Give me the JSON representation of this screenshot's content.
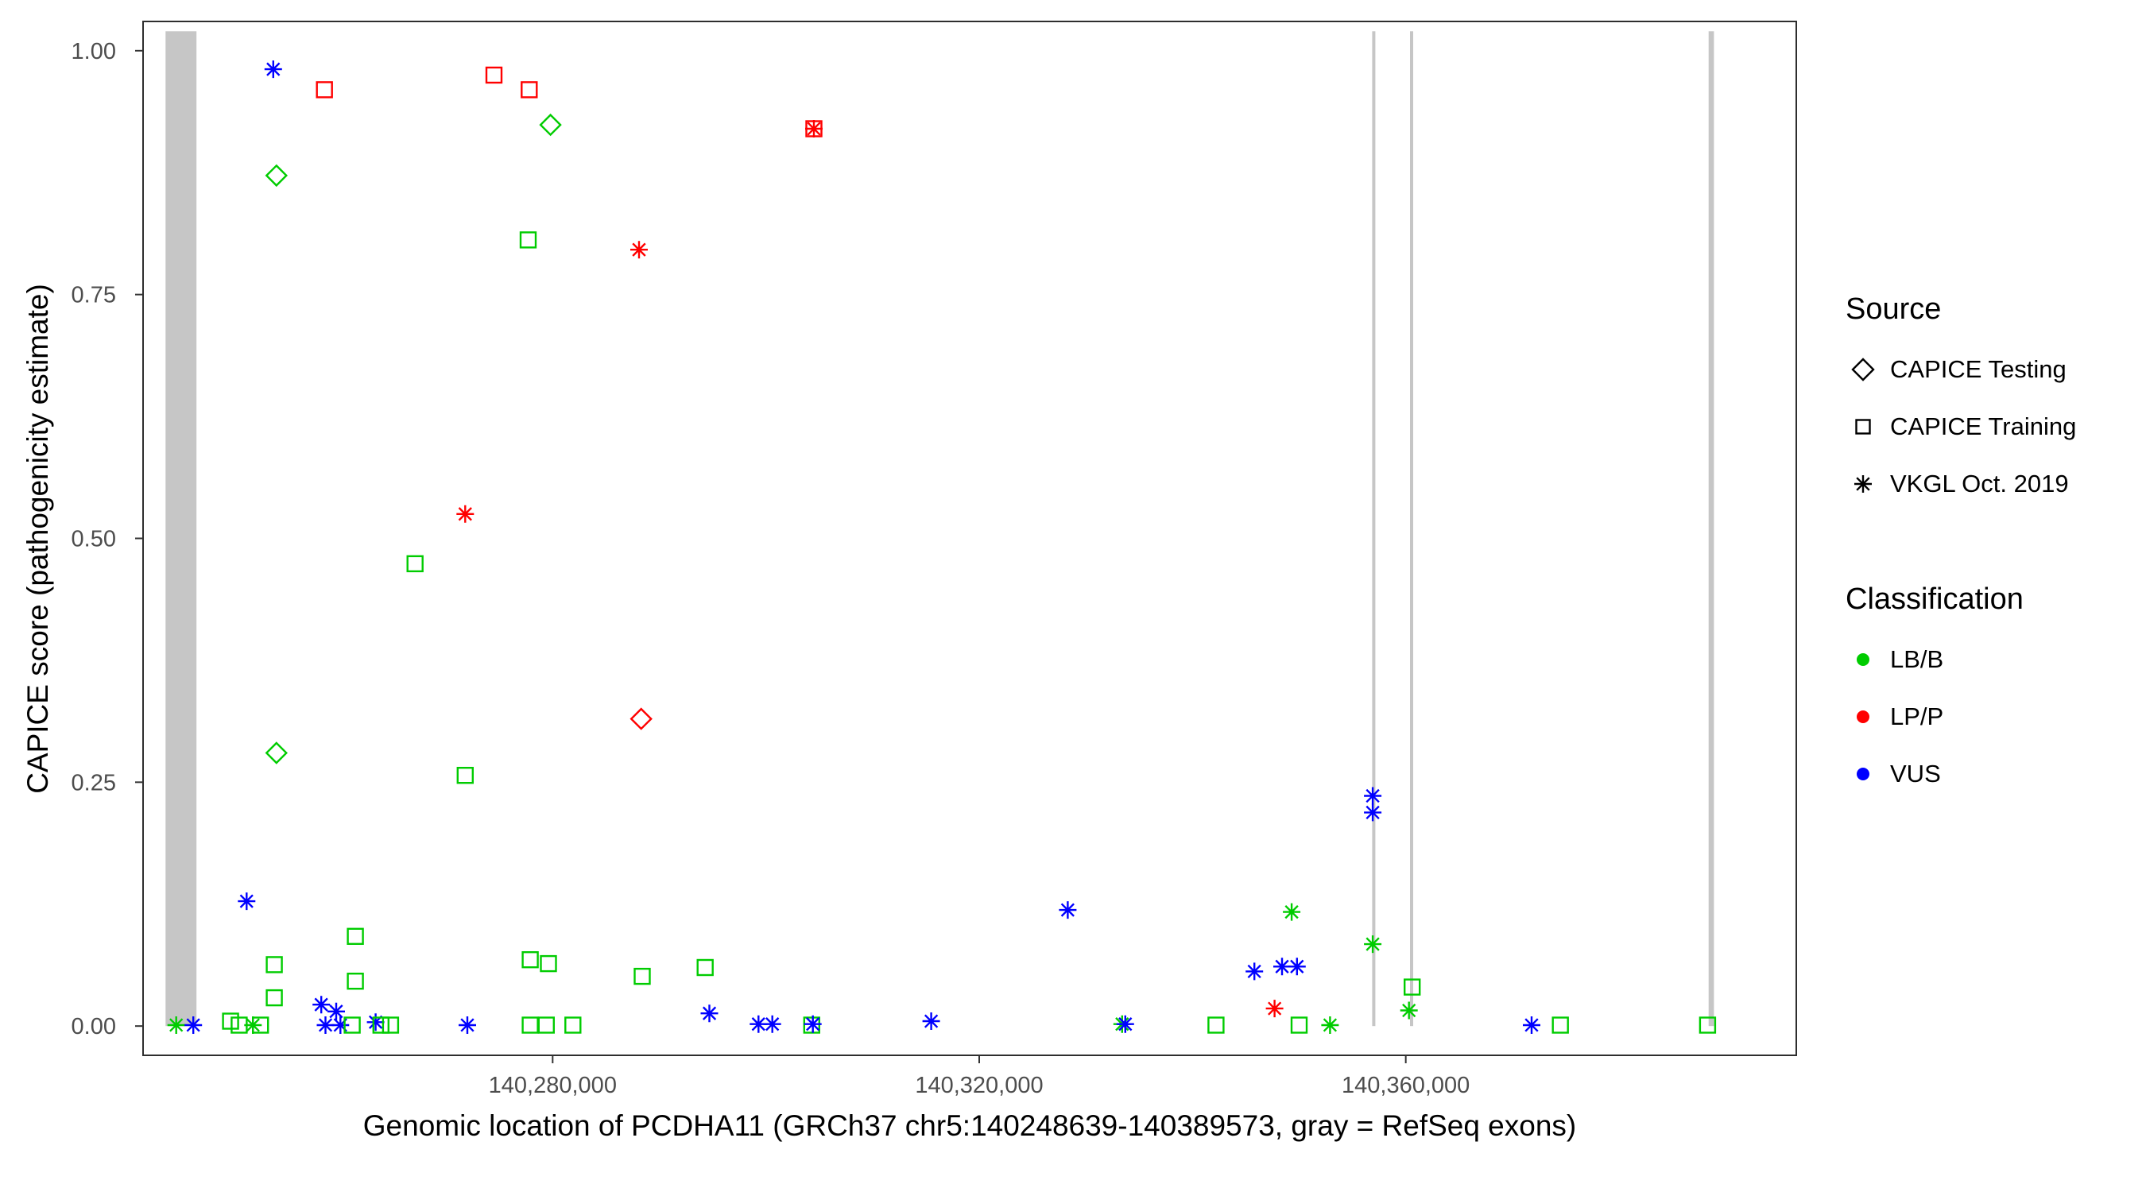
{
  "chart_data": {
    "type": "scatter",
    "title": "",
    "xlabel": "Genomic location of PCDHA11 (GRCh37 chr5:140248639-140389573, gray = RefSeq exons)",
    "ylabel": "CAPICE score (pathogenicity estimate)",
    "xlim": [
      140241592,
      140396620
    ],
    "ylim": [
      -0.03,
      1.03
    ],
    "grid": "off",
    "x_ticks": [
      {
        "value": 140280000,
        "label": "140,280,000"
      },
      {
        "value": 140320000,
        "label": "140,320,000"
      },
      {
        "value": 140360000,
        "label": "140,360,000"
      }
    ],
    "y_ticks": [
      {
        "value": 0.0,
        "label": "0.00"
      },
      {
        "value": 0.25,
        "label": "0.25"
      },
      {
        "value": 0.5,
        "label": "0.50"
      },
      {
        "value": 0.75,
        "label": "0.75"
      },
      {
        "value": 1.0,
        "label": "1.00"
      }
    ],
    "exon_color": "#c6c6c6",
    "exons": [
      {
        "start": 140243700,
        "end": 140246600,
        "ymin": 0,
        "ymax": 1.02
      },
      {
        "start": 140356850,
        "end": 140357150,
        "ymin": 0,
        "ymax": 1.02
      },
      {
        "start": 140360400,
        "end": 140360700,
        "ymin": 0,
        "ymax": 1.02
      },
      {
        "start": 140388400,
        "end": 140388900,
        "ymin": 0,
        "ymax": 1.02
      }
    ],
    "classification_colors": {
      "LB/B": "#00cc00",
      "LP/P": "#ff0000",
      "VUS": "#0000ff"
    },
    "points": [
      {
        "x": 140253800,
        "y": 0.981,
        "shape": "asterisk",
        "cls": "VUS"
      },
      {
        "x": 140258600,
        "y": 0.96,
        "shape": "square",
        "cls": "LP/P"
      },
      {
        "x": 140274500,
        "y": 0.975,
        "shape": "square",
        "cls": "LP/P"
      },
      {
        "x": 140277800,
        "y": 0.96,
        "shape": "square",
        "cls": "LP/P"
      },
      {
        "x": 140279800,
        "y": 0.924,
        "shape": "diamond",
        "cls": "LB/B"
      },
      {
        "x": 140254100,
        "y": 0.872,
        "shape": "diamond",
        "cls": "LB/B"
      },
      {
        "x": 140304500,
        "y": 0.92,
        "shape": "square",
        "cls": "LP/P"
      },
      {
        "x": 140304500,
        "y": 0.92,
        "shape": "asterisk",
        "cls": "LP/P"
      },
      {
        "x": 140277700,
        "y": 0.806,
        "shape": "square",
        "cls": "LB/B"
      },
      {
        "x": 140288100,
        "y": 0.796,
        "shape": "asterisk",
        "cls": "LP/P"
      },
      {
        "x": 140271800,
        "y": 0.525,
        "shape": "asterisk",
        "cls": "LP/P"
      },
      {
        "x": 140267100,
        "y": 0.474,
        "shape": "square",
        "cls": "LB/B"
      },
      {
        "x": 140288300,
        "y": 0.315,
        "shape": "diamond",
        "cls": "LP/P"
      },
      {
        "x": 140254100,
        "y": 0.28,
        "shape": "diamond",
        "cls": "LB/B"
      },
      {
        "x": 140271800,
        "y": 0.257,
        "shape": "square",
        "cls": "LB/B"
      },
      {
        "x": 140356900,
        "y": 0.236,
        "shape": "asterisk",
        "cls": "VUS"
      },
      {
        "x": 140356900,
        "y": 0.219,
        "shape": "asterisk",
        "cls": "VUS"
      },
      {
        "x": 140251300,
        "y": 0.128,
        "shape": "asterisk",
        "cls": "VUS"
      },
      {
        "x": 140328300,
        "y": 0.119,
        "shape": "asterisk",
        "cls": "VUS"
      },
      {
        "x": 140349300,
        "y": 0.117,
        "shape": "asterisk",
        "cls": "LB/B"
      },
      {
        "x": 140261500,
        "y": 0.092,
        "shape": "square",
        "cls": "LB/B"
      },
      {
        "x": 140356900,
        "y": 0.084,
        "shape": "asterisk",
        "cls": "LB/B"
      },
      {
        "x": 140253900,
        "y": 0.063,
        "shape": "square",
        "cls": "LB/B"
      },
      {
        "x": 140277900,
        "y": 0.068,
        "shape": "square",
        "cls": "LB/B"
      },
      {
        "x": 140279600,
        "y": 0.064,
        "shape": "square",
        "cls": "LB/B"
      },
      {
        "x": 140345800,
        "y": 0.056,
        "shape": "asterisk",
        "cls": "VUS"
      },
      {
        "x": 140348400,
        "y": 0.061,
        "shape": "asterisk",
        "cls": "VUS"
      },
      {
        "x": 140349800,
        "y": 0.061,
        "shape": "asterisk",
        "cls": "VUS"
      },
      {
        "x": 140288400,
        "y": 0.051,
        "shape": "square",
        "cls": "LB/B"
      },
      {
        "x": 140294300,
        "y": 0.06,
        "shape": "square",
        "cls": "LB/B"
      },
      {
        "x": 140261500,
        "y": 0.046,
        "shape": "square",
        "cls": "LB/B"
      },
      {
        "x": 140253900,
        "y": 0.029,
        "shape": "square",
        "cls": "LB/B"
      },
      {
        "x": 140360600,
        "y": 0.04,
        "shape": "square",
        "cls": "LB/B"
      },
      {
        "x": 140347700,
        "y": 0.018,
        "shape": "asterisk",
        "cls": "LP/P"
      },
      {
        "x": 140360300,
        "y": 0.016,
        "shape": "asterisk",
        "cls": "LB/B"
      },
      {
        "x": 140294700,
        "y": 0.013,
        "shape": "asterisk",
        "cls": "VUS"
      },
      {
        "x": 140258300,
        "y": 0.022,
        "shape": "asterisk",
        "cls": "VUS"
      },
      {
        "x": 140259700,
        "y": 0.015,
        "shape": "asterisk",
        "cls": "VUS"
      },
      {
        "x": 140244700,
        "y": 0.001,
        "shape": "asterisk",
        "cls": "LB/B"
      },
      {
        "x": 140246300,
        "y": 0.001,
        "shape": "asterisk",
        "cls": "VUS"
      },
      {
        "x": 140249800,
        "y": 0.005,
        "shape": "square",
        "cls": "LB/B"
      },
      {
        "x": 140250600,
        "y": 0.001,
        "shape": "square",
        "cls": "LB/B"
      },
      {
        "x": 140251900,
        "y": 0.001,
        "shape": "asterisk",
        "cls": "LB/B"
      },
      {
        "x": 140252600,
        "y": 0.001,
        "shape": "square",
        "cls": "LB/B"
      },
      {
        "x": 140258700,
        "y": 0.001,
        "shape": "asterisk",
        "cls": "VUS"
      },
      {
        "x": 140260100,
        "y": 0.001,
        "shape": "asterisk",
        "cls": "VUS"
      },
      {
        "x": 140261200,
        "y": 0.001,
        "shape": "square",
        "cls": "LB/B"
      },
      {
        "x": 140263400,
        "y": 0.004,
        "shape": "asterisk",
        "cls": "VUS"
      },
      {
        "x": 140263900,
        "y": 0.001,
        "shape": "square",
        "cls": "LB/B"
      },
      {
        "x": 140264800,
        "y": 0.001,
        "shape": "square",
        "cls": "LB/B"
      },
      {
        "x": 140272000,
        "y": 0.001,
        "shape": "asterisk",
        "cls": "VUS"
      },
      {
        "x": 140277900,
        "y": 0.001,
        "shape": "square",
        "cls": "LB/B"
      },
      {
        "x": 140279400,
        "y": 0.001,
        "shape": "square",
        "cls": "LB/B"
      },
      {
        "x": 140281900,
        "y": 0.001,
        "shape": "square",
        "cls": "LB/B"
      },
      {
        "x": 140299300,
        "y": 0.002,
        "shape": "asterisk",
        "cls": "VUS"
      },
      {
        "x": 140300600,
        "y": 0.002,
        "shape": "asterisk",
        "cls": "VUS"
      },
      {
        "x": 140304300,
        "y": 0.001,
        "shape": "square",
        "cls": "LB/B"
      },
      {
        "x": 140304400,
        "y": 0.002,
        "shape": "asterisk",
        "cls": "VUS"
      },
      {
        "x": 140315500,
        "y": 0.005,
        "shape": "asterisk",
        "cls": "VUS"
      },
      {
        "x": 140333400,
        "y": 0.002,
        "shape": "asterisk",
        "cls": "LB/B"
      },
      {
        "x": 140333700,
        "y": 0.002,
        "shape": "asterisk",
        "cls": "VUS"
      },
      {
        "x": 140342200,
        "y": 0.001,
        "shape": "square",
        "cls": "LB/B"
      },
      {
        "x": 140350000,
        "y": 0.001,
        "shape": "square",
        "cls": "LB/B"
      },
      {
        "x": 140352900,
        "y": 0.001,
        "shape": "asterisk",
        "cls": "LB/B"
      },
      {
        "x": 140371800,
        "y": 0.001,
        "shape": "asterisk",
        "cls": "VUS"
      },
      {
        "x": 140374500,
        "y": 0.001,
        "shape": "square",
        "cls": "LB/B"
      },
      {
        "x": 140388300,
        "y": 0.001,
        "shape": "square",
        "cls": "LB/B"
      }
    ]
  },
  "legend": {
    "source": {
      "title": "Source",
      "items": [
        {
          "shape": "diamond",
          "label": "CAPICE Testing"
        },
        {
          "shape": "square",
          "label": "CAPICE Training"
        },
        {
          "shape": "asterisk",
          "label": "VKGL Oct. 2019"
        }
      ]
    },
    "classification": {
      "title": "Classification",
      "items": [
        {
          "label": "LB/B",
          "color": "#00cc00"
        },
        {
          "label": "LP/P",
          "color": "#ff0000"
        },
        {
          "label": "VUS",
          "color": "#0000ff"
        }
      ]
    }
  }
}
